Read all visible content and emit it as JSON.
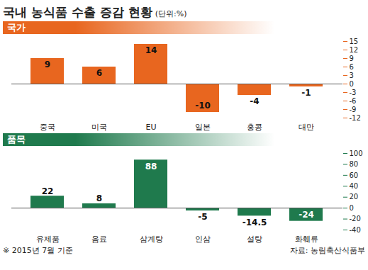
{
  "title": "국내 농식품 수출 증감 현황",
  "unit": "(단위:%)",
  "note": "※ 2015년 7월 기준",
  "source": "자료: 농림축산식품부",
  "chart_data": [
    {
      "type": "bar",
      "title": "국가",
      "categories": [
        "중국",
        "미국",
        "EU",
        "일본",
        "홍콩",
        "대만"
      ],
      "values": [
        9,
        6,
        14,
        -10,
        -4,
        -1
      ],
      "color": "#e8661f",
      "ylim": [
        -12,
        15
      ],
      "yticks": [
        -12,
        -9,
        -6,
        -3,
        0,
        3,
        6,
        9,
        12,
        15
      ],
      "grid": false,
      "data_labels": true
    },
    {
      "type": "bar",
      "title": "품목",
      "categories": [
        "유제품",
        "음료",
        "삼계탕",
        "인삼",
        "설탕",
        "화훼류"
      ],
      "values": [
        22,
        8,
        88,
        -5,
        -14.5,
        -24
      ],
      "color": "#1f7a4d",
      "ylim": [
        -40,
        100
      ],
      "yticks": [
        -40,
        -20,
        0,
        20,
        40,
        60,
        80,
        100
      ],
      "grid": false,
      "data_labels": true
    }
  ]
}
